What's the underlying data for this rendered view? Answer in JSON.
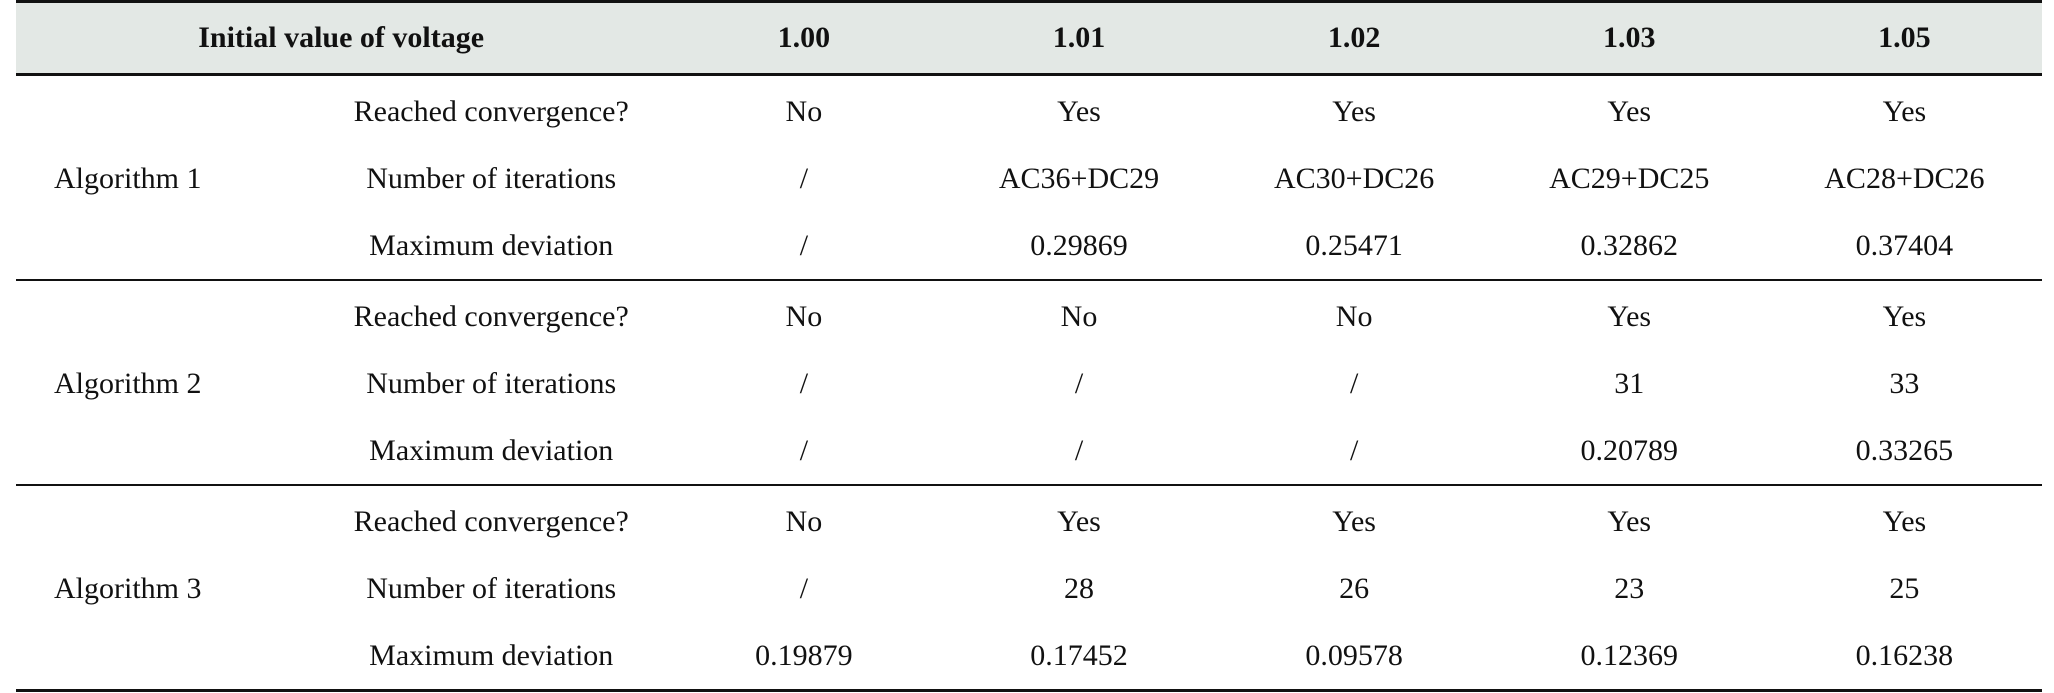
{
  "header": {
    "label": "Initial value of voltage",
    "columns": [
      "1.00",
      "1.01",
      "1.02",
      "1.03",
      "1.05"
    ]
  },
  "groups": [
    {
      "name": "Algorithm 1",
      "rows": [
        {
          "metric": "Reached convergence?",
          "values": [
            "No",
            "Yes",
            "Yes",
            "Yes",
            "Yes"
          ]
        },
        {
          "metric": "Number of iterations",
          "values": [
            "/",
            "AC36+DC29",
            "AC30+DC26",
            "AC29+DC25",
            "AC28+DC26"
          ]
        },
        {
          "metric": "Maximum deviation",
          "values": [
            "/",
            "0.29869",
            "0.25471",
            "0.32862",
            "0.37404"
          ]
        }
      ]
    },
    {
      "name": "Algorithm 2",
      "rows": [
        {
          "metric": "Reached convergence?",
          "values": [
            "No",
            "No",
            "No",
            "Yes",
            "Yes"
          ]
        },
        {
          "metric": "Number of iterations",
          "values": [
            "/",
            "/",
            "/",
            "31",
            "33"
          ]
        },
        {
          "metric": "Maximum deviation",
          "values": [
            "/",
            "/",
            "/",
            "0.20789",
            "0.33265"
          ]
        }
      ]
    },
    {
      "name": "Algorithm 3",
      "rows": [
        {
          "metric": "Reached convergence?",
          "values": [
            "No",
            "Yes",
            "Yes",
            "Yes",
            "Yes"
          ]
        },
        {
          "metric": "Number of iterations",
          "values": [
            "/",
            "28",
            "26",
            "23",
            "25"
          ]
        },
        {
          "metric": "Maximum deviation",
          "values": [
            "0.19879",
            "0.17452",
            "0.09578",
            "0.12369",
            "0.16238"
          ]
        }
      ]
    }
  ]
}
